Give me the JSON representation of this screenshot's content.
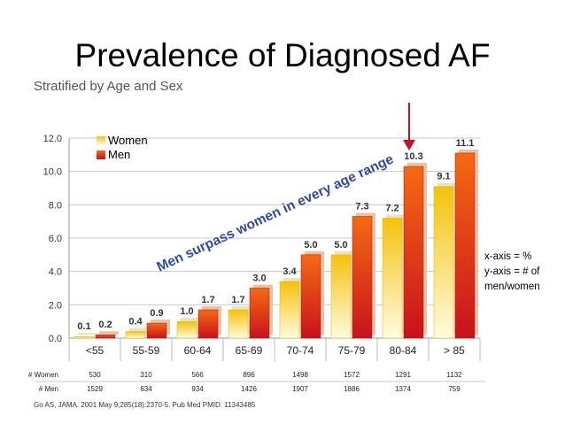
{
  "slide": {
    "title": "Prevalence of Diagnosed AF",
    "subtitle": "Stratified by Age and Sex",
    "annotation": "Men surpass women in every age range",
    "note_lines": [
      "x-axis = %",
      "y-axis = # of",
      "men/women"
    ],
    "citation": "Go AS, JAMA. 2001 May 9;285(18):2370-5. Pub Med PMID: 11343485"
  },
  "chart_data": {
    "type": "bar",
    "categories": [
      "<55",
      "55-59",
      "60-64",
      "65-69",
      "70-74",
      "75-79",
      "80-84",
      "> 85"
    ],
    "series": [
      {
        "name": "Women",
        "values": [
          0.1,
          0.4,
          1.0,
          1.7,
          3.4,
          5.0,
          7.2,
          9.1
        ],
        "labels": [
          "0.1",
          "0.4",
          "1.0",
          "1.7",
          "3.4",
          "5.0",
          "7.2",
          "9.1"
        ],
        "color_top": "#f5c20a",
        "color_bottom": "#fffbe0"
      },
      {
        "name": "Men",
        "values": [
          0.2,
          0.9,
          1.7,
          3.0,
          5.0,
          7.3,
          10.3,
          11.1
        ],
        "labels": [
          "0.2",
          "0.9",
          "1.7",
          "3.0",
          "5.0",
          "7.3",
          "10.3",
          "11.1"
        ],
        "color_top": "#f56a12",
        "color_bottom": "#c8121c"
      }
    ],
    "ylim": [
      0,
      12
    ],
    "yticks": [
      "0.0",
      "2.0",
      "4.0",
      "6.0",
      "8.0",
      "10.0",
      "12.0"
    ],
    "legend_position": "top-left",
    "grid": true,
    "table": {
      "rows": [
        {
          "label": "# Women",
          "values": [
            "530",
            "310",
            "566",
            "896",
            "1498",
            "1572",
            "1291",
            "1132"
          ]
        },
        {
          "label": "# Men",
          "values": [
            "1529",
            "634",
            "934",
            "1426",
            "1907",
            "1886",
            "1374",
            "759"
          ]
        }
      ]
    },
    "highlight_category": "80-84"
  }
}
